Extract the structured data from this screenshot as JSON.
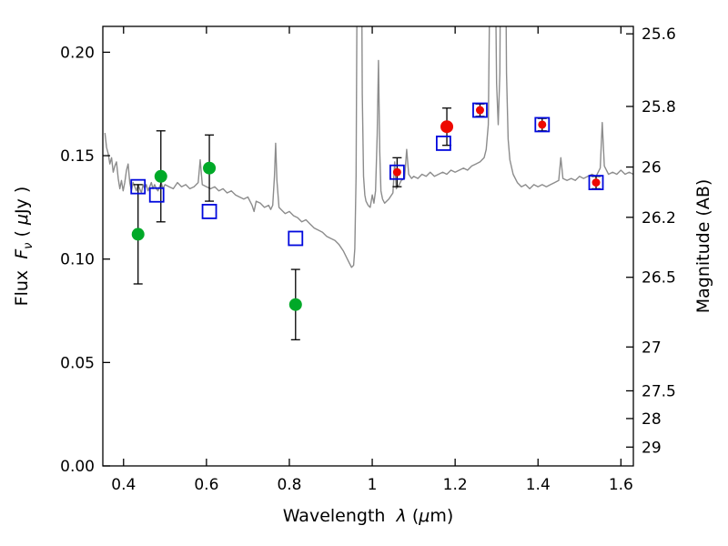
{
  "chart_data": {
    "type": "scatter",
    "title": "",
    "xlim": [
      0.35,
      1.63
    ],
    "ylim": [
      0.0,
      0.2125
    ],
    "grid": false,
    "legend": "none",
    "xlabel_parts": [
      {
        "t": "Wavelength  ",
        "s": "n"
      },
      {
        "t": "λ",
        "s": "i"
      },
      {
        "t": " (",
        "s": "n"
      },
      {
        "t": "μ",
        "s": "i"
      },
      {
        "t": "m)",
        "s": "n"
      }
    ],
    "ylabel_left_parts": [
      {
        "t": "Flux  ",
        "s": "n"
      },
      {
        "t": "F",
        "s": "i"
      },
      {
        "t": "ν",
        "s": "is"
      },
      {
        "t": " ( ",
        "s": "n"
      },
      {
        "t": "μ",
        "s": "i"
      },
      {
        "t": "Jy )",
        "s": "n"
      }
    ],
    "ylabel_right_parts": [
      {
        "t": "Magnitude (AB)",
        "s": "n"
      }
    ],
    "x_ticks": [
      {
        "v": 0.4,
        "label": "0.4"
      },
      {
        "v": 0.6,
        "label": "0.6"
      },
      {
        "v": 0.8,
        "label": "0.8"
      },
      {
        "v": 1.0,
        "label": "1"
      },
      {
        "v": 1.2,
        "label": "1.2"
      },
      {
        "v": 1.4,
        "label": "1.4"
      },
      {
        "v": 1.6,
        "label": "1.6"
      }
    ],
    "y_left_ticks": [
      {
        "v": 0.0,
        "label": "0.00"
      },
      {
        "v": 0.05,
        "label": "0.05"
      },
      {
        "v": 0.1,
        "label": "0.10"
      },
      {
        "v": 0.15,
        "label": "0.15"
      },
      {
        "v": 0.2,
        "label": "0.20"
      }
    ],
    "y_right_ticks": [
      {
        "flux": 0.2089,
        "label": "25.6"
      },
      {
        "flux": 0.1738,
        "label": "25.8"
      },
      {
        "flux": 0.1445,
        "label": "26"
      },
      {
        "flux": 0.1202,
        "label": "26.2"
      },
      {
        "flux": 0.0912,
        "label": "26.5"
      },
      {
        "flux": 0.0575,
        "label": "27"
      },
      {
        "flux": 0.0363,
        "label": "27.5"
      },
      {
        "flux": 0.0229,
        "label": "28"
      },
      {
        "flux": 0.0091,
        "label": "29"
      }
    ],
    "colors": {
      "spectrum": "#8c8c8c",
      "green": "#00a928",
      "blue": "#0008dd",
      "red": "#ee0800",
      "errorbar": "#000000",
      "axis": "#000000",
      "background": "#ffffff"
    },
    "green_points": [
      {
        "x": 0.435,
        "y": 0.112,
        "yerr": 0.024
      },
      {
        "x": 0.49,
        "y": 0.14,
        "yerr": 0.022
      },
      {
        "x": 0.607,
        "y": 0.144,
        "yerr": 0.016
      },
      {
        "x": 0.815,
        "y": 0.078,
        "yerr": 0.017
      }
    ],
    "blue_squares": [
      {
        "x": 0.435,
        "y": 0.135
      },
      {
        "x": 0.48,
        "y": 0.131
      },
      {
        "x": 0.607,
        "y": 0.123
      },
      {
        "x": 0.815,
        "y": 0.11
      },
      {
        "x": 1.06,
        "y": 0.142
      },
      {
        "x": 1.172,
        "y": 0.156
      },
      {
        "x": 1.26,
        "y": 0.172
      },
      {
        "x": 1.41,
        "y": 0.165
      },
      {
        "x": 1.54,
        "y": 0.137
      }
    ],
    "red_points": [
      {
        "x": 1.06,
        "y": 0.142,
        "yerr": 0.007,
        "small": true
      },
      {
        "x": 1.18,
        "y": 0.164,
        "yerr": 0.009,
        "small": false
      },
      {
        "x": 1.26,
        "y": 0.172,
        "yerr": 0.003,
        "small": true
      },
      {
        "x": 1.41,
        "y": 0.165,
        "yerr": 0.003,
        "small": true
      },
      {
        "x": 1.54,
        "y": 0.137,
        "yerr": 0.003,
        "small": true
      }
    ],
    "spectrum": [
      [
        0.355,
        0.161
      ],
      [
        0.359,
        0.154
      ],
      [
        0.363,
        0.151
      ],
      [
        0.367,
        0.146
      ],
      [
        0.371,
        0.149
      ],
      [
        0.375,
        0.142
      ],
      [
        0.379,
        0.145
      ],
      [
        0.383,
        0.147
      ],
      [
        0.387,
        0.139
      ],
      [
        0.391,
        0.134
      ],
      [
        0.395,
        0.138
      ],
      [
        0.399,
        0.133
      ],
      [
        0.403,
        0.137
      ],
      [
        0.407,
        0.143
      ],
      [
        0.411,
        0.146
      ],
      [
        0.415,
        0.137
      ],
      [
        0.419,
        0.133
      ],
      [
        0.423,
        0.137
      ],
      [
        0.427,
        0.135
      ],
      [
        0.431,
        0.133
      ],
      [
        0.435,
        0.136
      ],
      [
        0.439,
        0.134
      ],
      [
        0.443,
        0.132
      ],
      [
        0.447,
        0.136
      ],
      [
        0.451,
        0.134
      ],
      [
        0.455,
        0.136
      ],
      [
        0.459,
        0.133
      ],
      [
        0.463,
        0.135
      ],
      [
        0.467,
        0.137
      ],
      [
        0.471,
        0.134
      ],
      [
        0.475,
        0.136
      ],
      [
        0.479,
        0.134
      ],
      [
        0.483,
        0.133
      ],
      [
        0.487,
        0.135
      ],
      [
        0.491,
        0.137
      ],
      [
        0.495,
        0.134
      ],
      [
        0.5,
        0.136
      ],
      [
        0.51,
        0.135
      ],
      [
        0.52,
        0.134
      ],
      [
        0.53,
        0.137
      ],
      [
        0.54,
        0.135
      ],
      [
        0.55,
        0.136
      ],
      [
        0.56,
        0.134
      ],
      [
        0.57,
        0.135
      ],
      [
        0.58,
        0.137
      ],
      [
        0.585,
        0.148
      ],
      [
        0.59,
        0.136
      ],
      [
        0.6,
        0.135
      ],
      [
        0.61,
        0.134
      ],
      [
        0.62,
        0.135
      ],
      [
        0.63,
        0.133
      ],
      [
        0.64,
        0.134
      ],
      [
        0.65,
        0.132
      ],
      [
        0.66,
        0.133
      ],
      [
        0.67,
        0.131
      ],
      [
        0.68,
        0.13
      ],
      [
        0.69,
        0.129
      ],
      [
        0.7,
        0.13
      ],
      [
        0.705,
        0.128
      ],
      [
        0.71,
        0.126
      ],
      [
        0.715,
        0.123
      ],
      [
        0.72,
        0.128
      ],
      [
        0.73,
        0.127
      ],
      [
        0.74,
        0.125
      ],
      [
        0.75,
        0.126
      ],
      [
        0.755,
        0.124
      ],
      [
        0.76,
        0.126
      ],
      [
        0.764,
        0.14
      ],
      [
        0.767,
        0.156
      ],
      [
        0.77,
        0.138
      ],
      [
        0.775,
        0.125
      ],
      [
        0.78,
        0.124
      ],
      [
        0.79,
        0.122
      ],
      [
        0.8,
        0.123
      ],
      [
        0.81,
        0.121
      ],
      [
        0.82,
        0.12
      ],
      [
        0.83,
        0.118
      ],
      [
        0.84,
        0.119
      ],
      [
        0.85,
        0.117
      ],
      [
        0.86,
        0.115
      ],
      [
        0.87,
        0.114
      ],
      [
        0.88,
        0.113
      ],
      [
        0.89,
        0.111
      ],
      [
        0.9,
        0.11
      ],
      [
        0.91,
        0.109
      ],
      [
        0.92,
        0.107
      ],
      [
        0.93,
        0.104
      ],
      [
        0.94,
        0.1
      ],
      [
        0.945,
        0.098
      ],
      [
        0.95,
        0.096
      ],
      [
        0.955,
        0.097
      ],
      [
        0.958,
        0.105
      ],
      [
        0.961,
        0.14
      ],
      [
        0.964,
        0.26
      ],
      [
        0.967,
        0.42
      ],
      [
        0.97,
        0.43
      ],
      [
        0.973,
        0.3
      ],
      [
        0.976,
        0.18
      ],
      [
        0.979,
        0.14
      ],
      [
        0.982,
        0.131
      ],
      [
        0.985,
        0.128
      ],
      [
        0.99,
        0.126
      ],
      [
        0.995,
        0.125
      ],
      [
        1.0,
        0.131
      ],
      [
        1.004,
        0.127
      ],
      [
        1.008,
        0.133
      ],
      [
        1.012,
        0.16
      ],
      [
        1.015,
        0.196
      ],
      [
        1.018,
        0.152
      ],
      [
        1.021,
        0.133
      ],
      [
        1.025,
        0.129
      ],
      [
        1.03,
        0.127
      ],
      [
        1.04,
        0.129
      ],
      [
        1.05,
        0.132
      ],
      [
        1.054,
        0.147
      ],
      [
        1.058,
        0.134
      ],
      [
        1.065,
        0.136
      ],
      [
        1.07,
        0.138
      ],
      [
        1.078,
        0.139
      ],
      [
        1.083,
        0.153
      ],
      [
        1.088,
        0.141
      ],
      [
        1.095,
        0.139
      ],
      [
        1.1,
        0.14
      ],
      [
        1.11,
        0.139
      ],
      [
        1.12,
        0.141
      ],
      [
        1.13,
        0.14
      ],
      [
        1.14,
        0.142
      ],
      [
        1.15,
        0.14
      ],
      [
        1.16,
        0.141
      ],
      [
        1.17,
        0.142
      ],
      [
        1.18,
        0.141
      ],
      [
        1.19,
        0.143
      ],
      [
        1.2,
        0.142
      ],
      [
        1.21,
        0.143
      ],
      [
        1.22,
        0.144
      ],
      [
        1.23,
        0.143
      ],
      [
        1.24,
        0.145
      ],
      [
        1.25,
        0.146
      ],
      [
        1.26,
        0.147
      ],
      [
        1.27,
        0.149
      ],
      [
        1.275,
        0.153
      ],
      [
        1.28,
        0.165
      ],
      [
        1.284,
        0.24
      ],
      [
        1.288,
        0.42
      ],
      [
        1.292,
        0.43
      ],
      [
        1.296,
        0.26
      ],
      [
        1.3,
        0.185
      ],
      [
        1.304,
        0.165
      ],
      [
        1.308,
        0.19
      ],
      [
        1.312,
        0.33
      ],
      [
        1.316,
        0.42
      ],
      [
        1.32,
        0.3
      ],
      [
        1.324,
        0.19
      ],
      [
        1.328,
        0.158
      ],
      [
        1.332,
        0.148
      ],
      [
        1.34,
        0.141
      ],
      [
        1.35,
        0.137
      ],
      [
        1.36,
        0.135
      ],
      [
        1.37,
        0.136
      ],
      [
        1.38,
        0.134
      ],
      [
        1.39,
        0.136
      ],
      [
        1.4,
        0.135
      ],
      [
        1.41,
        0.136
      ],
      [
        1.42,
        0.135
      ],
      [
        1.43,
        0.136
      ],
      [
        1.44,
        0.137
      ],
      [
        1.45,
        0.138
      ],
      [
        1.455,
        0.149
      ],
      [
        1.46,
        0.139
      ],
      [
        1.47,
        0.138
      ],
      [
        1.48,
        0.139
      ],
      [
        1.49,
        0.138
      ],
      [
        1.5,
        0.14
      ],
      [
        1.51,
        0.139
      ],
      [
        1.52,
        0.14
      ],
      [
        1.53,
        0.141
      ],
      [
        1.54,
        0.14
      ],
      [
        1.55,
        0.144
      ],
      [
        1.555,
        0.166
      ],
      [
        1.56,
        0.145
      ],
      [
        1.57,
        0.141
      ],
      [
        1.58,
        0.142
      ],
      [
        1.59,
        0.141
      ],
      [
        1.6,
        0.143
      ],
      [
        1.61,
        0.141
      ],
      [
        1.62,
        0.142
      ],
      [
        1.63,
        0.141
      ]
    ]
  }
}
